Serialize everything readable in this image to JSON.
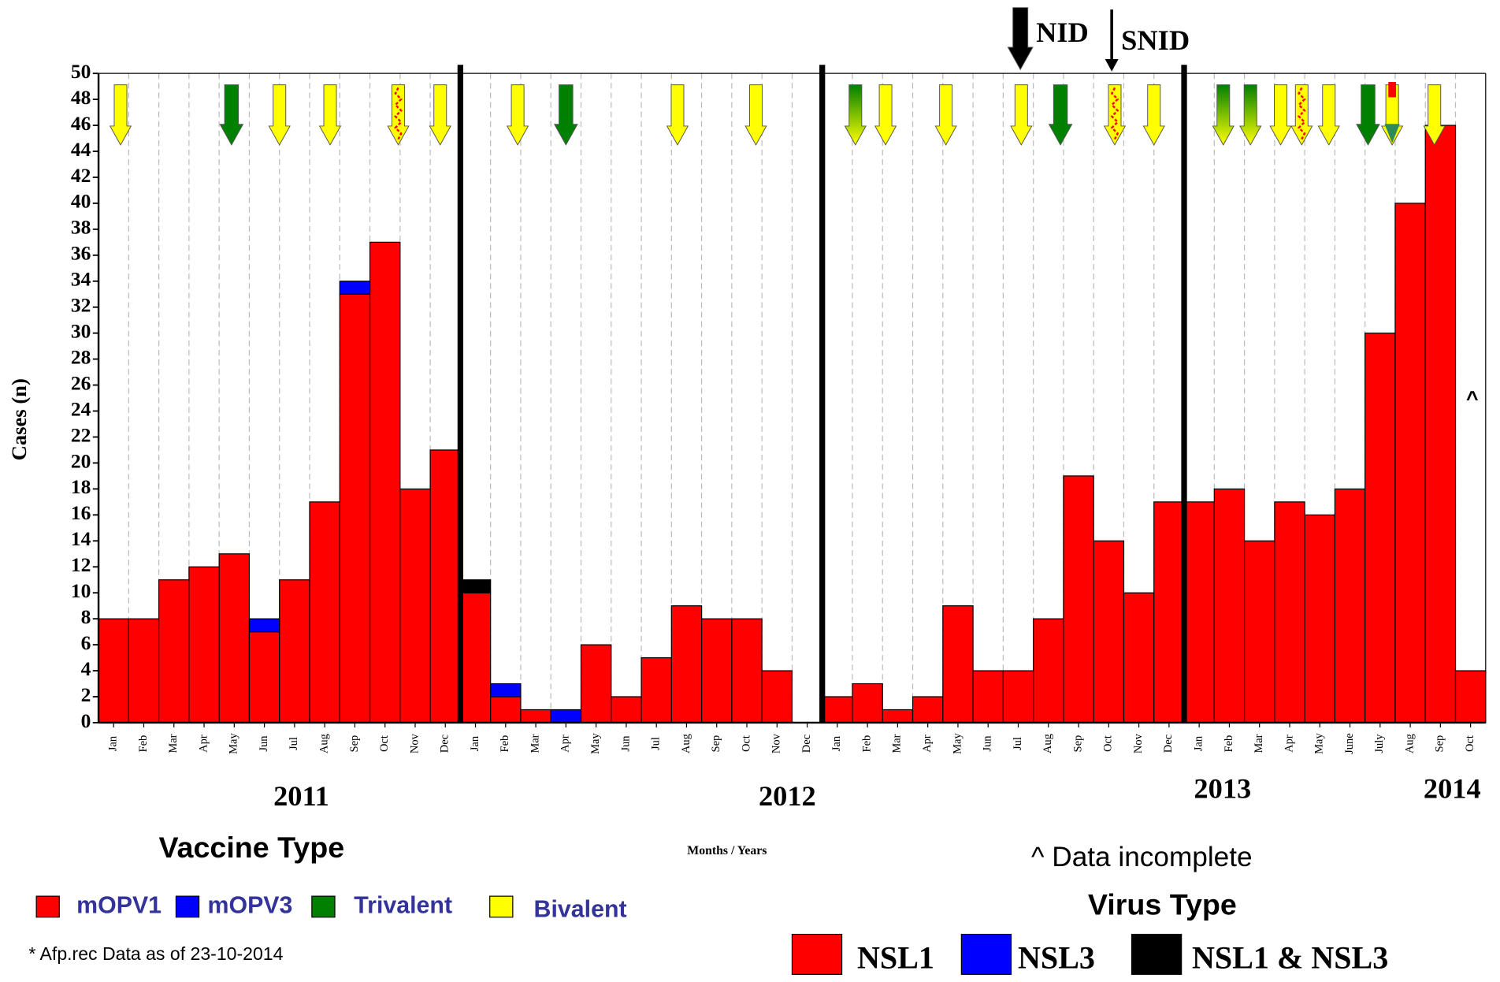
{
  "chart_data": {
    "type": "bar",
    "stacked": true,
    "y_label": "Cases (n)",
    "x_label": "Months / Years",
    "categories": [
      "Jan",
      "Feb",
      "Mar",
      "Apr",
      "May",
      "Jun",
      "Jul",
      "Aug",
      "Sep",
      "Oct",
      "Nov",
      "Dec",
      "Jan",
      "Feb",
      "Mar",
      "Apr",
      "May",
      "Jun",
      "Jul",
      "Aug",
      "Sep",
      "Oct",
      "Nov",
      "Dec",
      "Jan",
      "Feb",
      "Mar",
      "Apr",
      "May",
      "Jun",
      "Jul",
      "Aug",
      "Sep",
      "Oct",
      "Nov",
      "Dec",
      "Jan",
      "Feb",
      "Mar",
      "Apr",
      "May",
      "June",
      "July",
      "Aug",
      "Sep",
      "Oct"
    ],
    "years": [
      "2011",
      "2012",
      "2013",
      "2014"
    ],
    "series": [
      {
        "name": "NSL1",
        "color": "#ff0000",
        "values": [
          8,
          8,
          11,
          12,
          13,
          7,
          11,
          17,
          33,
          37,
          18,
          21,
          10,
          2,
          1,
          0,
          6,
          2,
          5,
          9,
          8,
          8,
          4,
          0,
          2,
          3,
          1,
          2,
          9,
          4,
          4,
          8,
          19,
          14,
          10,
          17,
          17,
          18,
          14,
          17,
          16,
          18,
          30,
          40,
          46,
          4
        ]
      },
      {
        "name": "NSL3",
        "color": "#0000ff",
        "values": [
          0,
          0,
          0,
          0,
          0,
          1,
          0,
          0,
          1,
          0,
          0,
          0,
          0,
          1,
          0,
          1,
          0,
          0,
          0,
          0,
          0,
          0,
          0,
          0,
          0,
          0,
          0,
          0,
          0,
          0,
          0,
          0,
          0,
          0,
          0,
          0,
          0,
          0,
          0,
          0,
          0,
          0,
          0,
          0,
          0,
          0
        ]
      },
      {
        "name": "NSL1 & NSL3",
        "color": "#000000",
        "values": [
          0,
          0,
          0,
          0,
          0,
          0,
          0,
          0,
          0,
          0,
          0,
          0,
          1,
          0,
          0,
          0,
          0,
          0,
          0,
          0,
          0,
          0,
          0,
          0,
          0,
          0,
          0,
          0,
          0,
          0,
          0,
          0,
          0,
          0,
          0,
          0,
          0,
          0,
          0,
          0,
          0,
          0,
          0,
          0,
          0,
          0
        ]
      }
    ],
    "ylim": [
      0,
      50
    ],
    "yticks": [
      0,
      2,
      4,
      6,
      8,
      10,
      12,
      14,
      16,
      18,
      20,
      22,
      24,
      26,
      28,
      30,
      32,
      34,
      36,
      38,
      40,
      42,
      44,
      46,
      48,
      50
    ],
    "annotations": {
      "nid": "NID",
      "snid": "SNID",
      "incomplete": "^ Data incomplete",
      "marker": "^"
    },
    "virus_legend_title": "Virus Type",
    "vaccine_legend": {
      "title": "Vaccine Type",
      "items": [
        {
          "name": "mOPV1",
          "color": "#ff0000"
        },
        {
          "name": "mOPV3",
          "color": "#0000ff"
        },
        {
          "name": "Trivalent",
          "color": "#008000"
        },
        {
          "name": "Bivalent",
          "color": "#ffff00"
        }
      ]
    },
    "note": "* Afp.rec Data as of  23-10-2014"
  }
}
